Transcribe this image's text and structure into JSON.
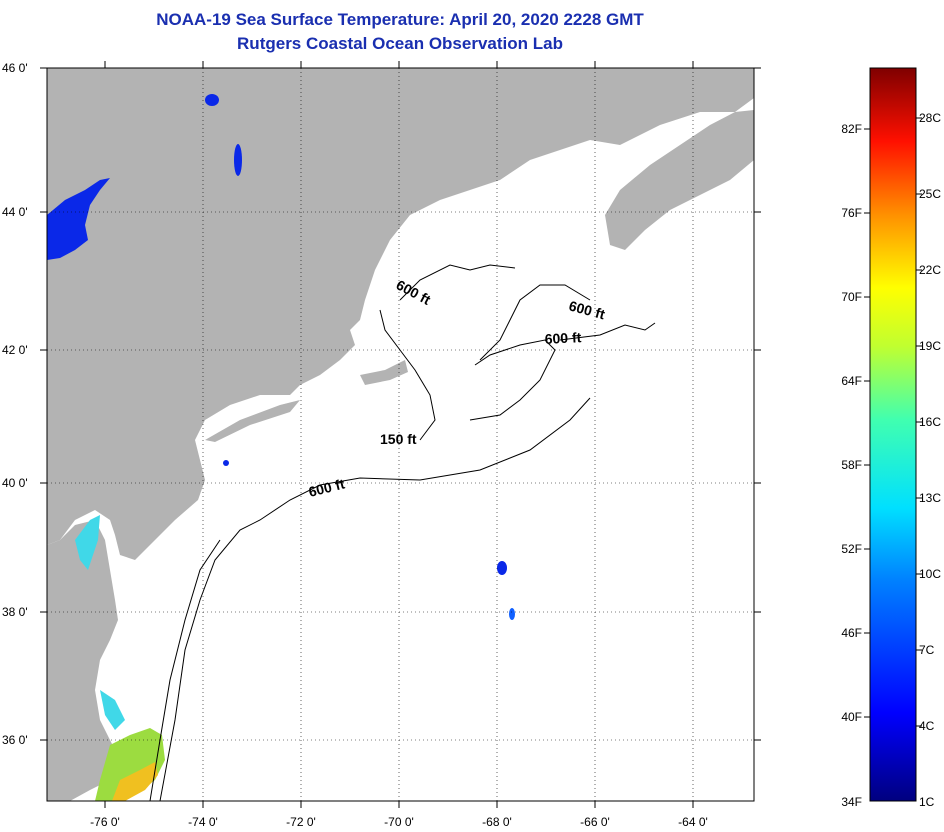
{
  "title": {
    "line1": "NOAA-19 Sea Surface Temperature:  April 20, 2020 2228 GMT",
    "line2": "Rutgers Coastal Ocean Observation Lab"
  },
  "axes": {
    "lat_labels": [
      "46 0'",
      "44 0'",
      "42 0'",
      "40 0'",
      "38 0'",
      "36 0'"
    ],
    "lon_labels": [
      "-76 0'",
      "-74 0'",
      "-72 0'",
      "-70 0'",
      "-68 0'",
      "-66 0'",
      "-64 0'"
    ]
  },
  "contours": {
    "labels": [
      "600 ft",
      "600 ft",
      "600 ft",
      "150 ft",
      "600 ft"
    ]
  },
  "colorbar": {
    "f_labels": [
      "82F",
      "76F",
      "70F",
      "64F",
      "58F",
      "52F",
      "46F",
      "40F",
      "34F"
    ],
    "c_labels": [
      "28C",
      "25C",
      "22C",
      "19C",
      "16C",
      "13C",
      "10C",
      "7C",
      "4C",
      "1C"
    ]
  },
  "colors": {
    "land": "#b3b3b3",
    "ocean": "#ffffff",
    "title": "#1a2fb0"
  }
}
